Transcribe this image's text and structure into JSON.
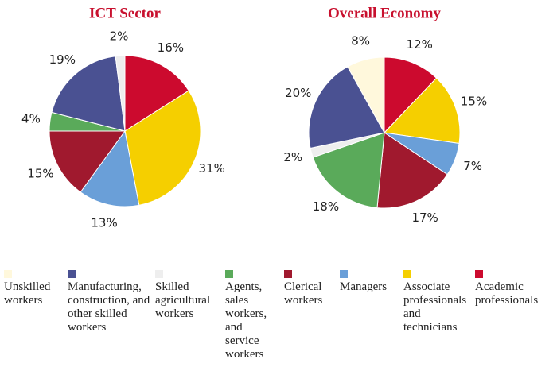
{
  "chart_data": [
    {
      "type": "pie",
      "title": "ICT Sector",
      "values": [
        16,
        31,
        13,
        15,
        4,
        19,
        2
      ],
      "value_labels": [
        "16%",
        "31%",
        "13%",
        "15%",
        "4%",
        "19%",
        "2%"
      ],
      "colors": [
        "#cc0a2e",
        "#f5cf00",
        "#6a9fd8",
        "#a0192e",
        "#5aaa5a",
        "#4a5192",
        "#eeeeee"
      ]
    },
    {
      "type": "pie",
      "title": "Overall Economy",
      "values": [
        12,
        15,
        7,
        17,
        18,
        2,
        20,
        8
      ],
      "value_labels": [
        "12%",
        "15%",
        "7%",
        "17%",
        "18%",
        "2%",
        "20%",
        "8%"
      ],
      "colors": [
        "#cc0a2e",
        "#f5cf00",
        "#6a9fd8",
        "#a0192e",
        "#5aaa5a",
        "#eeeeee",
        "#4a5192",
        "#fff8dc"
      ]
    }
  ],
  "legend": [
    {
      "name": "Unskilled workers",
      "color": "#fff8dc"
    },
    {
      "name": "Manufacturing, construction, and other skilled workers",
      "color": "#4a5192"
    },
    {
      "name": "Skilled agricultural workers",
      "color": "#eeeeee"
    },
    {
      "name": "Agents, sales workers, and service workers",
      "color": "#5aaa5a"
    },
    {
      "name": "Clerical workers",
      "color": "#a0192e"
    },
    {
      "name": "Managers",
      "color": "#6a9fd8"
    },
    {
      "name": "Associate professionals and technicians",
      "color": "#f5cf00"
    },
    {
      "name": "Academic professionals",
      "color": "#cc0a2e"
    }
  ]
}
